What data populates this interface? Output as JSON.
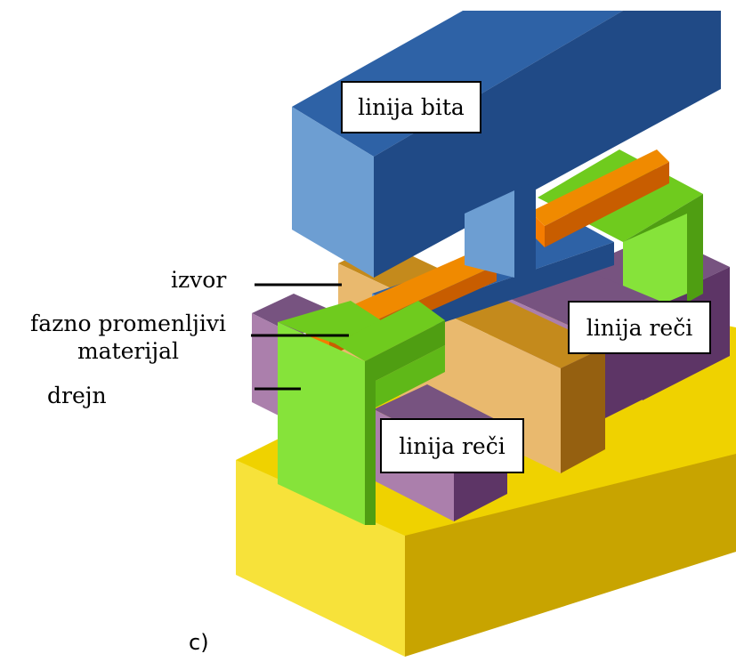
{
  "labels": {
    "bit_line": "linija bita",
    "word_line_right": "linija reči",
    "word_line_bottom": "linija reči",
    "source": "izvor",
    "phase_change_line1": "fazno promenljivi",
    "phase_change_line2": "materijal",
    "drain": "drejn",
    "figure_tag": "c)"
  },
  "colors": {
    "substrate_top": "#efd200",
    "substrate_front": "#f7e23a",
    "substrate_side": "#c8a400",
    "green_light": "#86e33a",
    "green_mid": "#6fcb1e",
    "green_dark": "#4f9e12",
    "purple_top": "#775380",
    "purple_front": "#ab7fac",
    "purple_side": "#5d3566",
    "tan_top": "#c48a1c",
    "tan_front": "#e9b96e",
    "tan_side": "#956010",
    "orange_top": "#f08a00",
    "orange_front": "#f57c00",
    "orange_side": "#c85d00",
    "blue_top": "#2e62a6",
    "blue_front": "#6d9ed2",
    "blue_side": "#204a86"
  }
}
